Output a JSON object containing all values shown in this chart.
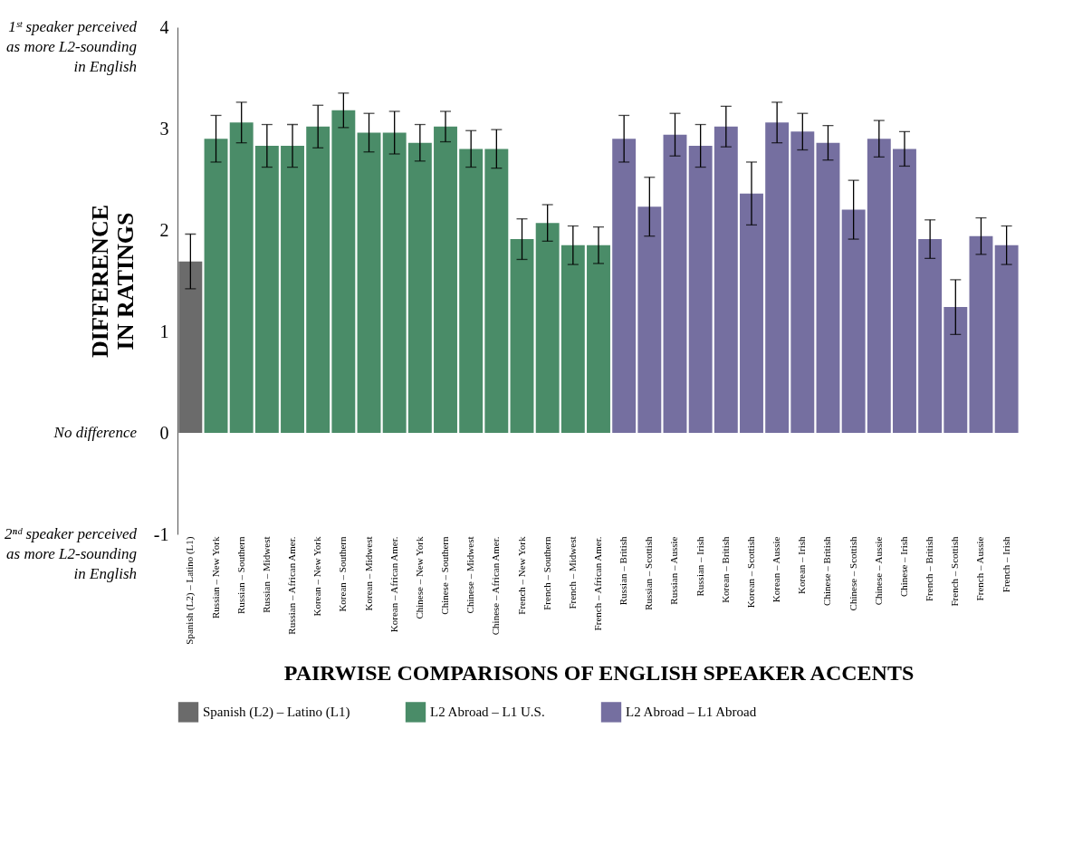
{
  "chart_data": {
    "type": "bar",
    "xlabel": "PAIRWISE COMPARISONS OF ENGLISH SPEAKER ACCENTS",
    "ylabel": "DIFFERENCE\nIN RATINGS",
    "categories": [
      "Spanish (L2) – Latino (L1)",
      "Russian – New York",
      "Russian – Southern",
      "Russian – Midwest",
      "Russian – African Amer.",
      "Korean – New York",
      "Korean – Southern",
      "Korean – Midwest",
      "Korean – African Amer.",
      "Chinese – New York",
      "Chinese – Southern",
      "Chinese – Midwest",
      "Chinese – African Amer.",
      "French – New York",
      "French – Southern",
      "French – Midwest",
      "French – African Amer.",
      "Russian – British",
      "Russian – Scottish",
      "Russian – Aussie",
      "Russian – Irish",
      "Korean – British",
      "Korean – Scottish",
      "Korean – Aussie",
      "Korean – Irish",
      "Chinese – British",
      "Chinese – Scottish",
      "Chinese – Aussie",
      "Chinese – Irish",
      "French – British",
      "French – Scottish",
      "French – Aussie",
      "French – Irish"
    ],
    "series": [
      {
        "name": "Spanish (L2) – Latino (L1)",
        "color": "#6b6b6b",
        "values": [
          1.69,
          null,
          null,
          null,
          null,
          null,
          null,
          null,
          null,
          null,
          null,
          null,
          null,
          null,
          null,
          null,
          null,
          null,
          null,
          null,
          null,
          null,
          null,
          null,
          null,
          null,
          null,
          null,
          null,
          null,
          null,
          null,
          null
        ],
        "errors": [
          0.27,
          null,
          null,
          null,
          null,
          null,
          null,
          null,
          null,
          null,
          null,
          null,
          null,
          null,
          null,
          null,
          null,
          null,
          null,
          null,
          null,
          null,
          null,
          null,
          null,
          null,
          null,
          null,
          null,
          null,
          null,
          null,
          null
        ]
      },
      {
        "name": "L2 Abroad – L1 U.S.",
        "color": "#4a8c68",
        "values": [
          null,
          2.9,
          3.06,
          2.83,
          2.83,
          3.02,
          3.18,
          2.96,
          2.96,
          2.86,
          3.02,
          2.8,
          2.8,
          1.91,
          2.07,
          1.85,
          1.85,
          null,
          null,
          null,
          null,
          null,
          null,
          null,
          null,
          null,
          null,
          null,
          null,
          null,
          null,
          null,
          null
        ],
        "errors": [
          null,
          0.23,
          0.2,
          0.21,
          0.21,
          0.21,
          0.17,
          0.19,
          0.21,
          0.18,
          0.15,
          0.18,
          0.19,
          0.2,
          0.18,
          0.19,
          0.18,
          null,
          null,
          null,
          null,
          null,
          null,
          null,
          null,
          null,
          null,
          null,
          null,
          null,
          null,
          null,
          null
        ]
      },
      {
        "name": "L2 Abroad – L1 Abroad",
        "color": "#756fa0",
        "values": [
          null,
          null,
          null,
          null,
          null,
          null,
          null,
          null,
          null,
          null,
          null,
          null,
          null,
          null,
          null,
          null,
          null,
          2.9,
          2.23,
          2.94,
          2.83,
          3.02,
          2.36,
          3.06,
          2.97,
          2.86,
          2.2,
          2.9,
          2.8,
          1.91,
          1.24,
          1.94,
          1.85
        ],
        "errors": [
          null,
          null,
          null,
          null,
          null,
          null,
          null,
          null,
          null,
          null,
          null,
          null,
          null,
          null,
          null,
          null,
          null,
          0.23,
          0.29,
          0.21,
          0.21,
          0.2,
          0.31,
          0.2,
          0.18,
          0.17,
          0.29,
          0.18,
          0.17,
          0.19,
          0.27,
          0.18,
          0.19
        ]
      }
    ],
    "ylim": [
      -1,
      4
    ],
    "yticks": [
      -1,
      0,
      1,
      2,
      3,
      4
    ],
    "grid": false,
    "legend": "bottom",
    "annotations": [
      "1ˢᵗ speaker perceived\nas more L2-sounding\nin English",
      "No difference",
      "2ⁿᵈ speaker perceived\nas more L2-sounding\nin English"
    ]
  }
}
